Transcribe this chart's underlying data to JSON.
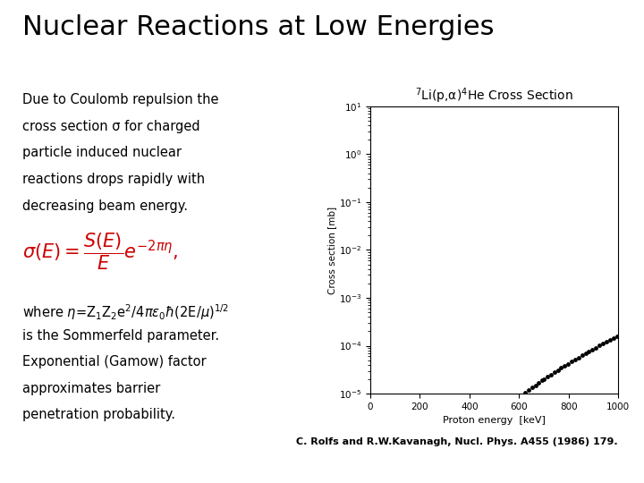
{
  "title": "Nuclear Reactions at Low Energies",
  "title_fontsize": 22,
  "title_fontweight": "normal",
  "bg_color": "#ffffff",
  "left_text_lines": [
    "Due to Coulomb repulsion the",
    "cross section σ for charged",
    "particle induced nuclear",
    "reactions drops rapidly with",
    "decreasing beam energy."
  ],
  "bottom_text_lines": [
    "where η=Z₁Z₂e²/4πε₀ħ(2E/μ)¹ᐟ²",
    "is the Sommerfeld parameter.",
    "Exponential (Gamow) factor",
    "approximates barrier",
    "penetration probability."
  ],
  "plot_title": "$^7$Li(p,α)$^4$He Cross Section",
  "plot_xlabel": "Proton energy  [keV]",
  "plot_ylabel": "Cross section [mb]",
  "plot_xlim": [
    0,
    1000
  ],
  "plot_ylim_log_min": -5,
  "plot_ylim_log_max": 1,
  "reference": "C. Rolfs and R.W.Kavanagh, Nucl. Phys. A455 (1986) 179.",
  "formula_color": "#cc0000",
  "text_fontsize": 10.5,
  "formula_fontsize": 15,
  "ref_fontsize": 8
}
